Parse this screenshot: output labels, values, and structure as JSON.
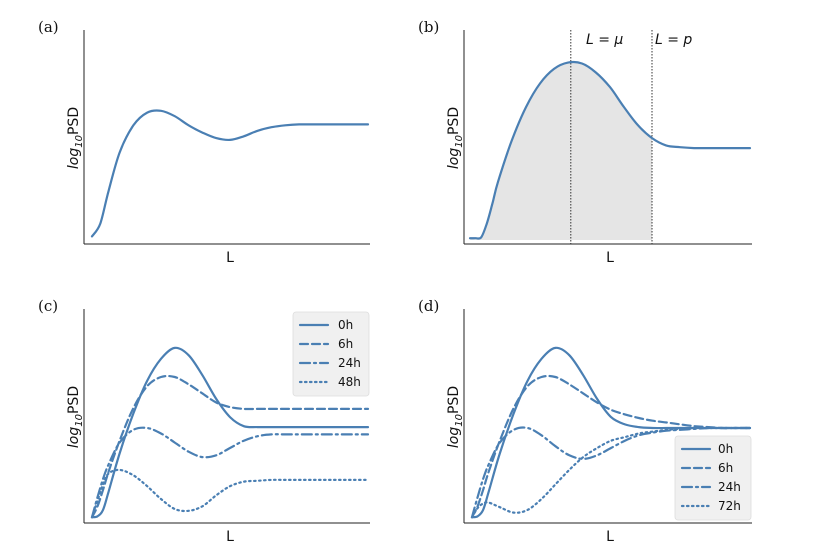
{
  "colors": {
    "series": "#4a7fb3",
    "fill": "#e5e5e5",
    "axis": "#222222"
  },
  "chart_data": [
    {
      "type": "line",
      "panel": "(a)",
      "xlabel": "L",
      "ylabel_prefix": "log",
      "ylabel_sub": "10",
      "ylabel_suffix": "PSD",
      "xlim": [
        0,
        10
      ],
      "ylim": [
        0,
        10
      ],
      "series": [
        {
          "name": "",
          "style": "solid",
          "x": [
            0,
            0.3,
            0.6,
            1,
            1.5,
            2,
            2.5,
            3,
            3.5,
            4,
            4.5,
            5,
            5.5,
            6,
            6.5,
            7,
            7.5,
            8,
            8.5,
            9,
            9.5,
            10
          ],
          "y": [
            0.2,
            0.9,
            2.7,
            4.8,
            6.3,
            7.0,
            7.1,
            6.8,
            6.3,
            5.9,
            5.6,
            5.5,
            5.7,
            6.0,
            6.2,
            6.3,
            6.35,
            6.35,
            6.35,
            6.35,
            6.35,
            6.35
          ]
        }
      ]
    },
    {
      "type": "area",
      "panel": "(b)",
      "xlabel": "L",
      "ylabel_prefix": "log",
      "ylabel_sub": "10",
      "ylabel_suffix": "PSD",
      "xlim": [
        0,
        10
      ],
      "ylim": [
        0,
        10
      ],
      "shade_between": [
        0,
        6.5
      ],
      "annotations": [
        {
          "x": 3.6,
          "label": "L = μ"
        },
        {
          "x": 6.5,
          "label": "L = p"
        }
      ],
      "series": [
        {
          "name": "",
          "style": "solid",
          "x": [
            0,
            0.2,
            0.4,
            0.6,
            0.8,
            1,
            1.5,
            2,
            2.5,
            3,
            3.5,
            4,
            4.5,
            5,
            5.5,
            6,
            6.5,
            7,
            7.5,
            8,
            8.5,
            9,
            9.5,
            10
          ],
          "y": [
            0.1,
            0.1,
            0.15,
            0.9,
            2.0,
            3.2,
            5.5,
            7.3,
            8.6,
            9.4,
            9.75,
            9.7,
            9.2,
            8.4,
            7.3,
            6.3,
            5.6,
            5.2,
            5.1,
            5.05,
            5.05,
            5.05,
            5.05,
            5.05
          ]
        }
      ]
    },
    {
      "type": "line",
      "panel": "(c)",
      "xlabel": "L",
      "ylabel_prefix": "log",
      "ylabel_sub": "10",
      "ylabel_suffix": "PSD",
      "xlim": [
        0,
        10
      ],
      "ylim": [
        0,
        10
      ],
      "legend": "top-right",
      "series": [
        {
          "name": "0h",
          "style": "solid",
          "x": [
            0,
            0.2,
            0.4,
            0.6,
            1,
            1.5,
            2,
            2.5,
            3,
            3.5,
            4,
            4.5,
            5,
            5.5,
            6,
            6.5,
            7,
            7.5,
            8,
            8.5,
            9,
            9.5,
            10
          ],
          "y": [
            0.1,
            0.15,
            0.5,
            1.5,
            3.6,
            5.8,
            7.6,
            8.8,
            9.4,
            9.0,
            7.9,
            6.6,
            5.6,
            5.1,
            5.05,
            5.05,
            5.05,
            5.05,
            5.05,
            5.05,
            5.05,
            5.05,
            5.05
          ]
        },
        {
          "name": "6h",
          "style": "dashed",
          "x": [
            0,
            0.2,
            0.4,
            0.6,
            1,
            1.5,
            2,
            2.5,
            3,
            3.5,
            4,
            4.5,
            5,
            5.5,
            6,
            6.5,
            7,
            7.5,
            8,
            8.5,
            9,
            9.5,
            10
          ],
          "y": [
            0.1,
            0.7,
            1.6,
            2.6,
            4.3,
            6.1,
            7.3,
            7.8,
            7.8,
            7.4,
            6.9,
            6.4,
            6.15,
            6.05,
            6.05,
            6.05,
            6.05,
            6.05,
            6.05,
            6.05,
            6.05,
            6.05,
            6.05
          ]
        },
        {
          "name": "24h",
          "style": "dashdot",
          "x": [
            0,
            0.2,
            0.4,
            0.6,
            1,
            1.5,
            2,
            2.5,
            3,
            3.5,
            4,
            4.5,
            5,
            5.5,
            6,
            6.5,
            7,
            7.5,
            8,
            8.5,
            9,
            9.5,
            10
          ],
          "y": [
            0.1,
            1.2,
            2.2,
            3.0,
            4.2,
            4.9,
            5.0,
            4.7,
            4.2,
            3.7,
            3.4,
            3.5,
            3.9,
            4.3,
            4.55,
            4.65,
            4.65,
            4.65,
            4.65,
            4.65,
            4.65,
            4.65,
            4.65
          ]
        },
        {
          "name": "48h",
          "style": "dotted",
          "x": [
            0,
            0.2,
            0.4,
            0.6,
            1,
            1.5,
            2,
            2.5,
            3,
            3.5,
            4,
            4.5,
            5,
            5.5,
            6,
            6.5,
            7,
            7.5,
            8,
            8.5,
            9,
            9.5,
            10
          ],
          "y": [
            0.1,
            1.0,
            1.9,
            2.5,
            2.7,
            2.4,
            1.8,
            1.1,
            0.55,
            0.45,
            0.7,
            1.3,
            1.8,
            2.05,
            2.1,
            2.15,
            2.15,
            2.15,
            2.15,
            2.15,
            2.15,
            2.15,
            2.15
          ]
        }
      ]
    },
    {
      "type": "line",
      "panel": "(d)",
      "xlabel": "L",
      "ylabel_prefix": "log",
      "ylabel_sub": "10",
      "ylabel_suffix": "PSD",
      "xlim": [
        0,
        10
      ],
      "ylim": [
        0,
        10
      ],
      "legend": "bottom-right",
      "series": [
        {
          "name": "0h",
          "style": "solid",
          "x": [
            0,
            0.2,
            0.4,
            0.6,
            1,
            1.5,
            2,
            2.5,
            3,
            3.5,
            4,
            4.5,
            5,
            5.5,
            6,
            6.5,
            7,
            7.5,
            8,
            8.5,
            9,
            9.5,
            10
          ],
          "y": [
            0.1,
            0.15,
            0.5,
            1.5,
            3.6,
            5.8,
            7.6,
            8.8,
            9.4,
            9.0,
            7.9,
            6.6,
            5.6,
            5.2,
            5.05,
            5.0,
            5.0,
            5.0,
            5.0,
            5.0,
            5.0,
            5.0,
            5.0
          ]
        },
        {
          "name": "6h",
          "style": "dashed",
          "x": [
            0,
            0.2,
            0.4,
            0.6,
            1,
            1.5,
            2,
            2.5,
            3,
            3.5,
            4,
            4.5,
            5,
            5.5,
            6,
            6.5,
            7,
            7.5,
            8,
            8.5,
            9,
            9.5,
            10
          ],
          "y": [
            0.1,
            0.7,
            1.6,
            2.6,
            4.3,
            6.1,
            7.3,
            7.8,
            7.8,
            7.4,
            6.9,
            6.4,
            6.0,
            5.75,
            5.55,
            5.4,
            5.3,
            5.2,
            5.1,
            5.05,
            5.0,
            5.0,
            5.0
          ]
        },
        {
          "name": "24h",
          "style": "dashdot",
          "x": [
            0,
            0.2,
            0.4,
            0.6,
            1,
            1.5,
            2,
            2.5,
            3,
            3.5,
            4,
            4.5,
            5,
            5.5,
            6,
            6.5,
            7,
            7.5,
            8,
            8.5,
            9,
            9.5,
            10
          ],
          "y": [
            0.1,
            1.2,
            2.2,
            3.0,
            4.2,
            4.9,
            5.0,
            4.6,
            4.0,
            3.5,
            3.3,
            3.5,
            3.9,
            4.3,
            4.6,
            4.75,
            4.85,
            4.9,
            4.95,
            5.0,
            5.0,
            5.0,
            5.0
          ]
        },
        {
          "name": "72h",
          "style": "dotted",
          "x": [
            0,
            0.2,
            0.4,
            0.6,
            1,
            1.5,
            2,
            2.5,
            3,
            3.5,
            4,
            4.5,
            5,
            5.5,
            6,
            6.5,
            7,
            7.5,
            8,
            8.5,
            9,
            9.5,
            10
          ],
          "y": [
            0.1,
            0.6,
            0.85,
            0.9,
            0.65,
            0.35,
            0.5,
            1.1,
            1.9,
            2.7,
            3.4,
            3.9,
            4.3,
            4.5,
            4.7,
            4.8,
            4.9,
            4.95,
            5.0,
            5.0,
            5.0,
            5.0,
            5.0
          ]
        }
      ]
    }
  ]
}
